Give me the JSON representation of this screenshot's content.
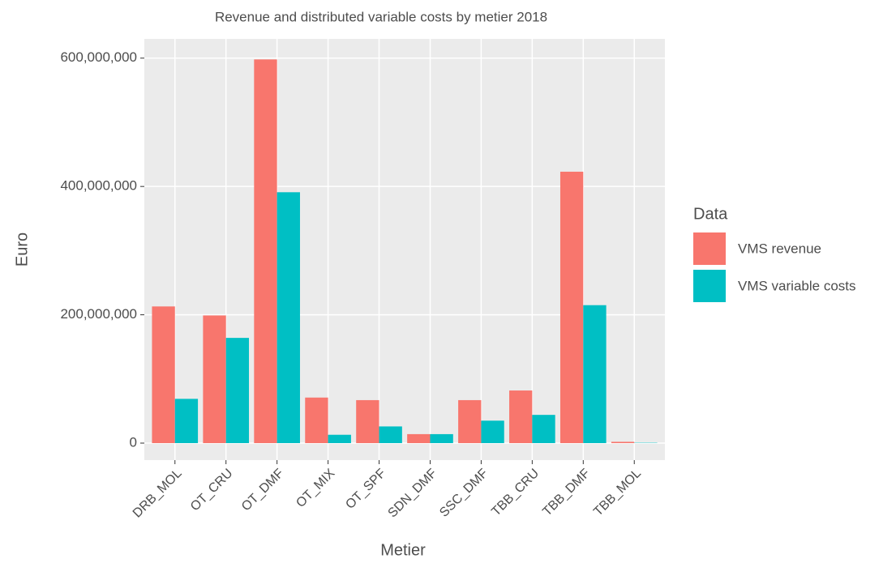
{
  "chart_data": {
    "type": "bar",
    "title": "Revenue and distributed variable costs by metier 2018",
    "x_label": "Metier",
    "y_label": "Euro",
    "legend_title": "Data",
    "categories": [
      "DRB_MOL",
      "OT_CRU",
      "OT_DMF",
      "OT_MIX",
      "OT_SPF",
      "SDN_DMF",
      "SSC_DMF",
      "TBB_CRU",
      "TBB_DMF",
      "TBB_MOL"
    ],
    "series": [
      {
        "name": "VMS revenue",
        "color": "#F8766D",
        "values": [
          213000000,
          199000000,
          598000000,
          71000000,
          67000000,
          14000000,
          67000000,
          82000000,
          423000000,
          2000000
        ]
      },
      {
        "name": "VMS variable costs",
        "color": "#00BFC4",
        "values": [
          69000000,
          164000000,
          391000000,
          13000000,
          26000000,
          14000000,
          35000000,
          44000000,
          215000000,
          500000
        ]
      }
    ],
    "ylim": [
      -26500000,
      630000000
    ],
    "yticks": [
      0,
      {
        "value": 200000000,
        "label": "200,000,000"
      },
      {
        "value": 400000000,
        "label": "400,000,000"
      },
      {
        "value": 600000000,
        "label": "600,000,000"
      }
    ],
    "grid": true,
    "legend": "right"
  }
}
